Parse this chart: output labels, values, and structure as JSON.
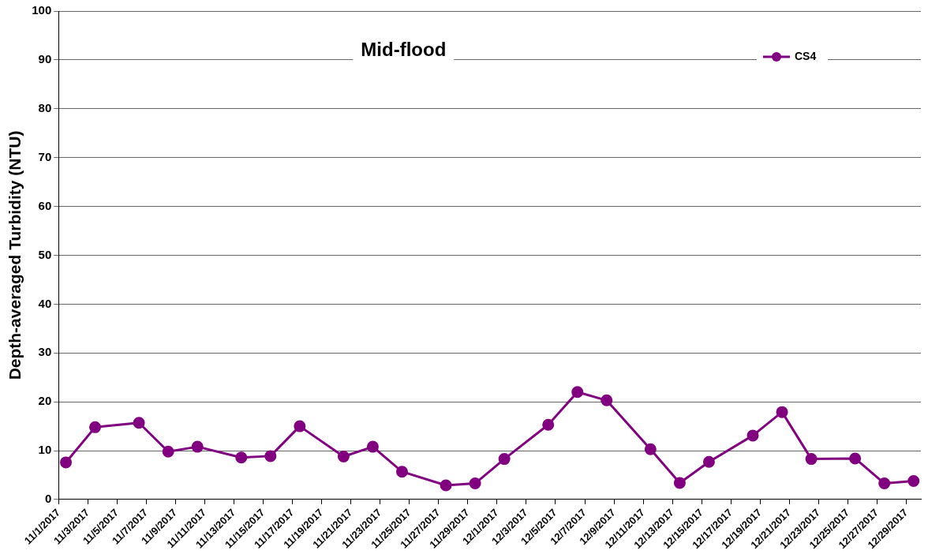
{
  "chart_data": {
    "type": "line",
    "title": "Mid-flood",
    "ylabel": "Depth-averaged Turbidity (NTU)",
    "x": [
      "2017-11-01T12:00",
      "2017-11-03T12:00",
      "2017-11-06T12:00",
      "2017-11-08T12:00",
      "2017-11-10T12:00",
      "2017-11-13T12:00",
      "2017-11-15T12:00",
      "2017-11-17T12:00",
      "2017-11-20T12:00",
      "2017-11-22T12:00",
      "2017-11-24T12:00",
      "2017-11-27T12:00",
      "2017-11-29T12:00",
      "2017-12-01T12:00",
      "2017-12-04T12:00",
      "2017-12-06T12:00",
      "2017-12-08T12:00",
      "2017-12-11T12:00",
      "2017-12-13T12:00",
      "2017-12-15T12:00",
      "2017-12-18T12:00",
      "2017-12-20T12:00",
      "2017-12-22T12:00",
      "2017-12-25T12:00",
      "2017-12-27T12:00",
      "2017-12-29T12:00"
    ],
    "series": [
      {
        "name": "CS4",
        "color": "#800080",
        "values": [
          7.6,
          14.8,
          15.7,
          9.8,
          10.8,
          8.6,
          8.9,
          15,
          8.8,
          10.8,
          5.7,
          2.9,
          3.3,
          8.3,
          15.3,
          22,
          20.3,
          10.3,
          3.4,
          7.7,
          13.1,
          17.9,
          8.3,
          8.4,
          3.3,
          3.8
        ]
      }
    ],
    "xlim": [
      "2017-11-01",
      "2017-12-30"
    ],
    "xticks": [
      {
        "value": "2017-11-01",
        "label": "11/1/2017"
      },
      {
        "value": "2017-11-03",
        "label": "11/3/2017"
      },
      {
        "value": "2017-11-05",
        "label": "11/5/2017"
      },
      {
        "value": "2017-11-07",
        "label": "11/7/2017"
      },
      {
        "value": "2017-11-09",
        "label": "11/9/2017"
      },
      {
        "value": "2017-11-11",
        "label": "11/11/2017"
      },
      {
        "value": "2017-11-13",
        "label": "11/13/2017"
      },
      {
        "value": "2017-11-15",
        "label": "11/15/2017"
      },
      {
        "value": "2017-11-17",
        "label": "11/17/2017"
      },
      {
        "value": "2017-11-19",
        "label": "11/19/2017"
      },
      {
        "value": "2017-11-21",
        "label": "11/21/2017"
      },
      {
        "value": "2017-11-23",
        "label": "11/23/2017"
      },
      {
        "value": "2017-11-25",
        "label": "11/25/2017"
      },
      {
        "value": "2017-11-27",
        "label": "11/27/2017"
      },
      {
        "value": "2017-11-29",
        "label": "11/29/2017"
      },
      {
        "value": "2017-12-01",
        "label": "12/1/2017"
      },
      {
        "value": "2017-12-03",
        "label": "12/3/2017"
      },
      {
        "value": "2017-12-05",
        "label": "12/5/2017"
      },
      {
        "value": "2017-12-07",
        "label": "12/7/2017"
      },
      {
        "value": "2017-12-09",
        "label": "12/9/2017"
      },
      {
        "value": "2017-12-11",
        "label": "12/11/2017"
      },
      {
        "value": "2017-12-13",
        "label": "12/13/2017"
      },
      {
        "value": "2017-12-15",
        "label": "12/15/2017"
      },
      {
        "value": "2017-12-17",
        "label": "12/17/2017"
      },
      {
        "value": "2017-12-19",
        "label": "12/19/2017"
      },
      {
        "value": "2017-12-21",
        "label": "12/21/2017"
      },
      {
        "value": "2017-12-23",
        "label": "12/23/2017"
      },
      {
        "value": "2017-12-25",
        "label": "12/25/2017"
      },
      {
        "value": "2017-12-27",
        "label": "12/27/2017"
      },
      {
        "value": "2017-12-29",
        "label": "12/29/2017"
      }
    ],
    "ylim": [
      0,
      100
    ],
    "yticks": [
      0,
      10,
      20,
      30,
      40,
      50,
      60,
      70,
      80,
      90,
      100
    ],
    "grid": "y",
    "legend": "top right",
    "marker": "circle",
    "line_style": "solid"
  }
}
